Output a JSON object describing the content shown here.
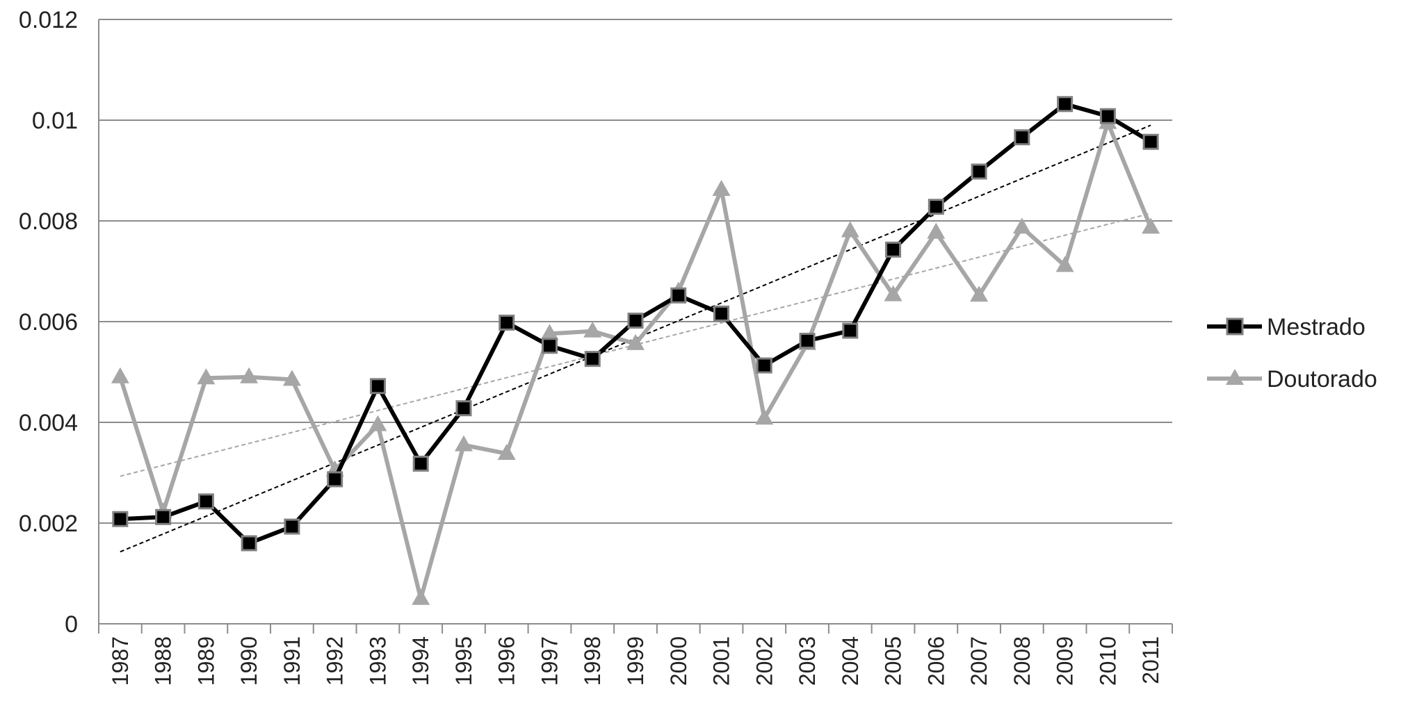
{
  "chart_data": {
    "type": "line",
    "title": "",
    "xlabel": "",
    "ylabel": "",
    "ylim": [
      0,
      0.012
    ],
    "y_ticks": [
      0,
      0.002,
      0.004,
      0.006,
      0.008,
      0.01,
      0.012
    ],
    "y_tick_labels": [
      "0",
      "0.002",
      "0.004",
      "0.006",
      "0.008",
      "0.01",
      "0.012"
    ],
    "categories": [
      "1987",
      "1988",
      "1989",
      "1990",
      "1991",
      "1992",
      "1993",
      "1994",
      "1995",
      "1996",
      "1997",
      "1998",
      "1999",
      "2000",
      "2001",
      "2002",
      "2003",
      "2004",
      "2005",
      "2006",
      "2007",
      "2008",
      "2009",
      "2010",
      "2011"
    ],
    "grid": "horizontal",
    "legend_position": "right",
    "series": [
      {
        "name": "Mestrado",
        "marker": "square",
        "color": "#000000",
        "values": [
          0.00208,
          0.00212,
          0.00243,
          0.0016,
          0.00193,
          0.00287,
          0.00472,
          0.00318,
          0.00428,
          0.00598,
          0.00552,
          0.00526,
          0.00602,
          0.00652,
          0.00616,
          0.00513,
          0.00562,
          0.00582,
          0.00743,
          0.00828,
          0.00898,
          0.00966,
          0.01032,
          0.01008,
          0.00957
        ]
      },
      {
        "name": "Doutorado",
        "marker": "triangle",
        "color": "#a6a6a6",
        "values": [
          0.0049,
          0.00222,
          0.00488,
          0.0049,
          0.00485,
          0.00305,
          0.00395,
          0.0005,
          0.00355,
          0.00338,
          0.00576,
          0.00581,
          0.00556,
          0.0066,
          0.00862,
          0.00408,
          0.00556,
          0.0078,
          0.00653,
          0.00777,
          0.00652,
          0.00787,
          0.00711,
          0.00995,
          0.00787
        ]
      }
    ],
    "trendlines": [
      {
        "series": "Mestrado",
        "style": "dashed",
        "color": "#000000",
        "start": 0.00143,
        "end": 0.0099
      },
      {
        "series": "Doutorado",
        "style": "dashed",
        "color": "#a6a6a6",
        "start": 0.00293,
        "end": 0.00815
      }
    ]
  }
}
